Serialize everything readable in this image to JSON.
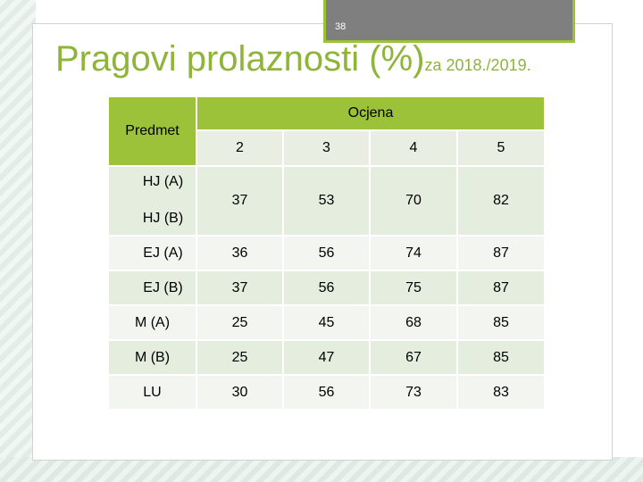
{
  "slide_number": "38",
  "title": {
    "main": "Pragovi prolaznosti (%)",
    "sub": "za 2018./2019."
  },
  "table": {
    "header_subject": "Predmet",
    "header_grade": "Ocjena",
    "grades": [
      "2",
      "3",
      "4",
      "5"
    ],
    "rows": [
      {
        "subjects": [
          "HJ (A)",
          "HJ (B)"
        ],
        "values": [
          "37",
          "53",
          "70",
          "82"
        ]
      },
      {
        "subject": "EJ (A)",
        "values": [
          "36",
          "56",
          "74",
          "87"
        ]
      },
      {
        "subject": "EJ (B)",
        "values": [
          "37",
          "56",
          "75",
          "87"
        ]
      },
      {
        "subject": "M (A)",
        "values": [
          "25",
          "45",
          "68",
          "85"
        ]
      },
      {
        "subject": "M (B)",
        "values": [
          "25",
          "47",
          "67",
          "85"
        ]
      },
      {
        "subject": "LU",
        "values": [
          "30",
          "56",
          "73",
          "83"
        ]
      }
    ]
  },
  "colors": {
    "accent_green": "#9cc23a",
    "title_green": "#8fb43a",
    "grade2_red": "#c0121e"
  }
}
